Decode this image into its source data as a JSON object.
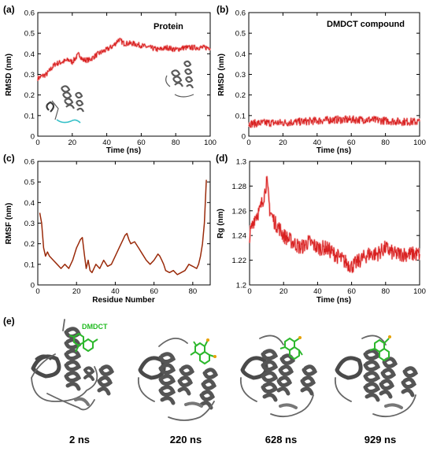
{
  "colors": {
    "line": "#d82020",
    "halo": "#f4a8a8",
    "rmsf": "#9a2a0a",
    "protein": "#5a5a5a",
    "ligand": "#33cc33"
  },
  "panel_e": {
    "label": "(e)",
    "ligand_label": "DMDCT",
    "snapshots": [
      {
        "label": "2 ns",
        "icon": "protein-ribbon-icon"
      },
      {
        "label": "220 ns",
        "icon": "protein-ribbon-icon"
      },
      {
        "label": "628 ns",
        "icon": "protein-ribbon-icon"
      },
      {
        "label": "929 ns",
        "icon": "protein-ribbon-icon"
      }
    ]
  },
  "chart_data": [
    {
      "panel": "(a)",
      "type": "line",
      "title": "Protein",
      "xlabel": "Time (ns)",
      "ylabel": "RMSD (nm)",
      "xlim": [
        0,
        100
      ],
      "ylim": [
        0,
        0.6
      ],
      "xticks": [
        0,
        20,
        40,
        60,
        80,
        100
      ],
      "yticks": [
        0,
        0.1,
        0.2,
        0.3,
        0.4,
        0.5,
        0.6
      ],
      "grid": false,
      "noise": 0.012,
      "series": [
        {
          "x": [
            0,
            2,
            5,
            8,
            10,
            14,
            18,
            20,
            24,
            26,
            30,
            35,
            40,
            44,
            47,
            50,
            55,
            60,
            65,
            70,
            75,
            80,
            85,
            90,
            95,
            100
          ],
          "y": [
            0.28,
            0.29,
            0.3,
            0.33,
            0.35,
            0.36,
            0.37,
            0.36,
            0.4,
            0.37,
            0.37,
            0.4,
            0.42,
            0.44,
            0.47,
            0.45,
            0.45,
            0.44,
            0.43,
            0.42,
            0.43,
            0.42,
            0.43,
            0.43,
            0.43,
            0.43
          ]
        }
      ]
    },
    {
      "panel": "(b)",
      "type": "line",
      "title": "DMDCT compound",
      "xlabel": "Time (ns)",
      "ylabel": "RMSD (nm)",
      "xlim": [
        0,
        100
      ],
      "ylim": [
        0,
        0.6
      ],
      "xticks": [
        0,
        20,
        40,
        60,
        80,
        100
      ],
      "yticks": [
        0,
        0.1,
        0.2,
        0.3,
        0.4,
        0.5,
        0.6
      ],
      "grid": false,
      "noise": 0.018,
      "series": [
        {
          "x": [
            0,
            10,
            20,
            30,
            40,
            50,
            60,
            70,
            80,
            90,
            100
          ],
          "y": [
            0.06,
            0.065,
            0.065,
            0.07,
            0.075,
            0.08,
            0.08,
            0.08,
            0.075,
            0.07,
            0.07
          ]
        }
      ]
    },
    {
      "panel": "(c)",
      "type": "line",
      "title": "",
      "xlabel": "Residue Number",
      "ylabel": "RMSF (nm)",
      "xlim": [
        0,
        89
      ],
      "ylim": [
        0,
        0.6
      ],
      "xticks": [
        0,
        20,
        40,
        60,
        80
      ],
      "yticks": [
        0,
        0.1,
        0.2,
        0.3,
        0.4,
        0.5,
        0.6
      ],
      "grid": false,
      "noise": 0,
      "series": [
        {
          "x": [
            1,
            2,
            3,
            4,
            5,
            6,
            8,
            10,
            12,
            14,
            16,
            18,
            20,
            21,
            22,
            23,
            24,
            25,
            26,
            27,
            28,
            30,
            32,
            34,
            36,
            38,
            40,
            42,
            44,
            45,
            46,
            47,
            48,
            50,
            52,
            54,
            56,
            58,
            60,
            62,
            63,
            64,
            65,
            66,
            68,
            70,
            72,
            74,
            76,
            78,
            80,
            82,
            83,
            84,
            85,
            86,
            87
          ],
          "y": [
            0.35,
            0.3,
            0.18,
            0.14,
            0.16,
            0.14,
            0.12,
            0.1,
            0.08,
            0.1,
            0.08,
            0.12,
            0.18,
            0.2,
            0.22,
            0.23,
            0.15,
            0.08,
            0.12,
            0.07,
            0.06,
            0.1,
            0.08,
            0.12,
            0.09,
            0.1,
            0.14,
            0.18,
            0.22,
            0.24,
            0.25,
            0.22,
            0.2,
            0.21,
            0.18,
            0.15,
            0.12,
            0.1,
            0.12,
            0.15,
            0.14,
            0.12,
            0.1,
            0.07,
            0.06,
            0.07,
            0.05,
            0.06,
            0.07,
            0.1,
            0.09,
            0.08,
            0.1,
            0.14,
            0.2,
            0.3,
            0.51
          ]
        }
      ]
    },
    {
      "panel": "(d)",
      "type": "line",
      "title": "",
      "xlabel": "Time (ns)",
      "ylabel": "Rg (nm)",
      "xlim": [
        0,
        100
      ],
      "ylim": [
        1.2,
        1.3
      ],
      "xticks": [
        0,
        20,
        40,
        60,
        80,
        100
      ],
      "yticks": [
        1.2,
        1.22,
        1.24,
        1.26,
        1.28,
        1.3
      ],
      "grid": false,
      "noise": 0.006,
      "series": [
        {
          "x": [
            0,
            3,
            6,
            9,
            10,
            12,
            15,
            18,
            20,
            25,
            30,
            35,
            40,
            45,
            50,
            55,
            60,
            65,
            70,
            75,
            80,
            85,
            90,
            95,
            100
          ],
          "y": [
            1.24,
            1.255,
            1.26,
            1.275,
            1.285,
            1.26,
            1.25,
            1.245,
            1.24,
            1.235,
            1.23,
            1.235,
            1.23,
            1.23,
            1.225,
            1.22,
            1.215,
            1.22,
            1.225,
            1.225,
            1.23,
            1.225,
            1.225,
            1.225,
            1.225
          ]
        }
      ]
    }
  ]
}
